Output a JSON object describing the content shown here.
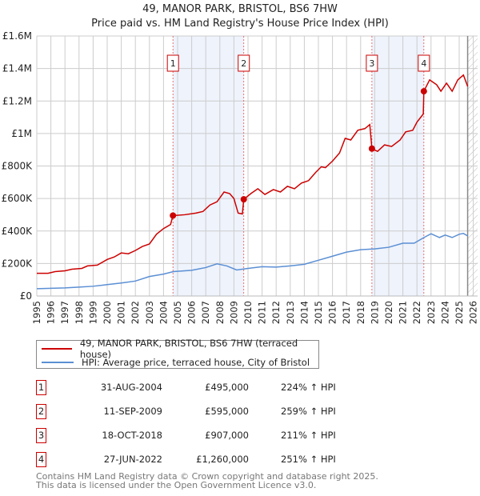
{
  "title": "49, MANOR PARK, BRISTOL, BS6 7HW",
  "subtitle": "Price paid vs. HM Land Registry's House Price Index (HPI)",
  "chart_data": {
    "type": "line",
    "title": "49, MANOR PARK, BRISTOL, BS6 7HW — Price paid vs. HM Land Registry's House Price Index (HPI)",
    "xlim": [
      1995,
      2026
    ],
    "ylim": [
      0,
      1600000
    ],
    "yticks": [
      {
        "v": 0,
        "label": "£0"
      },
      {
        "v": 200000,
        "label": "£200K"
      },
      {
        "v": 400000,
        "label": "£400K"
      },
      {
        "v": 600000,
        "label": "£600K"
      },
      {
        "v": 800000,
        "label": "£800K"
      },
      {
        "v": 1000000,
        "label": "£1M"
      },
      {
        "v": 1200000,
        "label": "£1.2M"
      },
      {
        "v": 1400000,
        "label": "£1.4M"
      },
      {
        "v": 1600000,
        "label": "£1.6M"
      }
    ],
    "xticks": [
      "1995",
      "1996",
      "1997",
      "1998",
      "1999",
      "2000",
      "2001",
      "2002",
      "2003",
      "2004",
      "2005",
      "2006",
      "2007",
      "2008",
      "2009",
      "2010",
      "2011",
      "2012",
      "2013",
      "2014",
      "2015",
      "2016",
      "2017",
      "2018",
      "2019",
      "2020",
      "2021",
      "2022",
      "2023",
      "2024",
      "2025",
      "2026"
    ],
    "grid": true,
    "colors": {
      "property": "#cc0000",
      "hpi": "#5b8fd4",
      "band": "#eef3fc"
    },
    "series": [
      {
        "name": "49, MANOR PARK, BRISTOL, BS6 7HW (terraced house)",
        "points": [
          [
            1995,
            140
          ],
          [
            1995.8,
            140
          ],
          [
            1996.3,
            150
          ],
          [
            1997,
            155
          ],
          [
            1997.5,
            165
          ],
          [
            1998.2,
            170
          ],
          [
            1998.6,
            185
          ],
          [
            1999.3,
            190
          ],
          [
            2000,
            225
          ],
          [
            2000.5,
            240
          ],
          [
            2001,
            265
          ],
          [
            2001.5,
            260
          ],
          [
            2002,
            280
          ],
          [
            2002.5,
            305
          ],
          [
            2003,
            320
          ],
          [
            2003.5,
            380
          ],
          [
            2004,
            415
          ],
          [
            2004.5,
            440
          ],
          [
            2004.67,
            495
          ],
          [
            2005.5,
            500
          ],
          [
            2006.3,
            510
          ],
          [
            2006.8,
            520
          ],
          [
            2007.3,
            560
          ],
          [
            2007.8,
            580
          ],
          [
            2008.3,
            640
          ],
          [
            2008.7,
            630
          ],
          [
            2009.0,
            600
          ],
          [
            2009.3,
            510
          ],
          [
            2009.6,
            505
          ],
          [
            2009.7,
            595
          ],
          [
            2010.2,
            630
          ],
          [
            2010.7,
            660
          ],
          [
            2011.2,
            625
          ],
          [
            2011.8,
            655
          ],
          [
            2012.3,
            640
          ],
          [
            2012.8,
            675
          ],
          [
            2013.3,
            660
          ],
          [
            2013.8,
            695
          ],
          [
            2014.3,
            710
          ],
          [
            2014.8,
            760
          ],
          [
            2015.2,
            795
          ],
          [
            2015.5,
            790
          ],
          [
            2016,
            830
          ],
          [
            2016.5,
            880
          ],
          [
            2016.9,
            970
          ],
          [
            2017.3,
            960
          ],
          [
            2017.8,
            1020
          ],
          [
            2018.3,
            1030
          ],
          [
            2018.65,
            1055
          ],
          [
            2018.8,
            907
          ],
          [
            2019.2,
            890
          ],
          [
            2019.7,
            930
          ],
          [
            2020.2,
            920
          ],
          [
            2020.8,
            960
          ],
          [
            2021.2,
            1010
          ],
          [
            2021.7,
            1020
          ],
          [
            2022.0,
            1070
          ],
          [
            2022.45,
            1120
          ],
          [
            2022.49,
            1260
          ],
          [
            2022.9,
            1330
          ],
          [
            2023.4,
            1300
          ],
          [
            2023.7,
            1260
          ],
          [
            2024.1,
            1310
          ],
          [
            2024.5,
            1260
          ],
          [
            2024.9,
            1330
          ],
          [
            2025.3,
            1360
          ],
          [
            2025.6,
            1290
          ]
        ]
      },
      {
        "name": "HPI: Average price, terraced house, City of Bristol",
        "points": [
          [
            1995,
            45
          ],
          [
            1997,
            50
          ],
          [
            1998,
            55
          ],
          [
            1999,
            60
          ],
          [
            2000,
            70
          ],
          [
            2001,
            80
          ],
          [
            2002,
            92
          ],
          [
            2003,
            120
          ],
          [
            2004,
            135
          ],
          [
            2004.7,
            150
          ],
          [
            2006,
            158
          ],
          [
            2007,
            175
          ],
          [
            2007.8,
            198
          ],
          [
            2008.5,
            185
          ],
          [
            2009.2,
            160
          ],
          [
            2010,
            170
          ],
          [
            2011,
            180
          ],
          [
            2012,
            178
          ],
          [
            2013,
            185
          ],
          [
            2014,
            195
          ],
          [
            2015,
            220
          ],
          [
            2016,
            245
          ],
          [
            2017,
            270
          ],
          [
            2018,
            285
          ],
          [
            2019,
            290
          ],
          [
            2020,
            300
          ],
          [
            2021,
            325
          ],
          [
            2021.8,
            325
          ],
          [
            2022.5,
            360
          ],
          [
            2023,
            383
          ],
          [
            2023.6,
            360
          ],
          [
            2024,
            375
          ],
          [
            2024.5,
            360
          ],
          [
            2025,
            380
          ],
          [
            2025.3,
            385
          ],
          [
            2025.6,
            370
          ]
        ]
      }
    ],
    "value_units": "thousands GBP",
    "sales": [
      {
        "id": "1",
        "x": 2004.67,
        "value": 495
      },
      {
        "id": "2",
        "x": 2009.7,
        "value": 595
      },
      {
        "id": "3",
        "x": 2018.8,
        "value": 907
      },
      {
        "id": "4",
        "x": 2022.49,
        "value": 1260
      }
    ],
    "bands": [
      [
        2004.67,
        2009.7
      ],
      [
        2018.8,
        2022.49
      ]
    ],
    "data_end": 2025.6
  },
  "legend": [
    "49, MANOR PARK, BRISTOL, BS6 7HW (terraced house)",
    "HPI: Average price, terraced house, City of Bristol"
  ],
  "transactions": [
    {
      "id": "1",
      "date": "31-AUG-2004",
      "price": "£495,000",
      "hpi": "224% ↑ HPI"
    },
    {
      "id": "2",
      "date": "11-SEP-2009",
      "price": "£595,000",
      "hpi": "259% ↑ HPI"
    },
    {
      "id": "3",
      "date": "18-OCT-2018",
      "price": "£907,000",
      "hpi": "211% ↑ HPI"
    },
    {
      "id": "4",
      "date": "27-JUN-2022",
      "price": "£1,260,000",
      "hpi": "251% ↑ HPI"
    }
  ],
  "footer": [
    "Contains HM Land Registry data © Crown copyright and database right 2025.",
    "This data is licensed under the Open Government Licence v3.0."
  ]
}
